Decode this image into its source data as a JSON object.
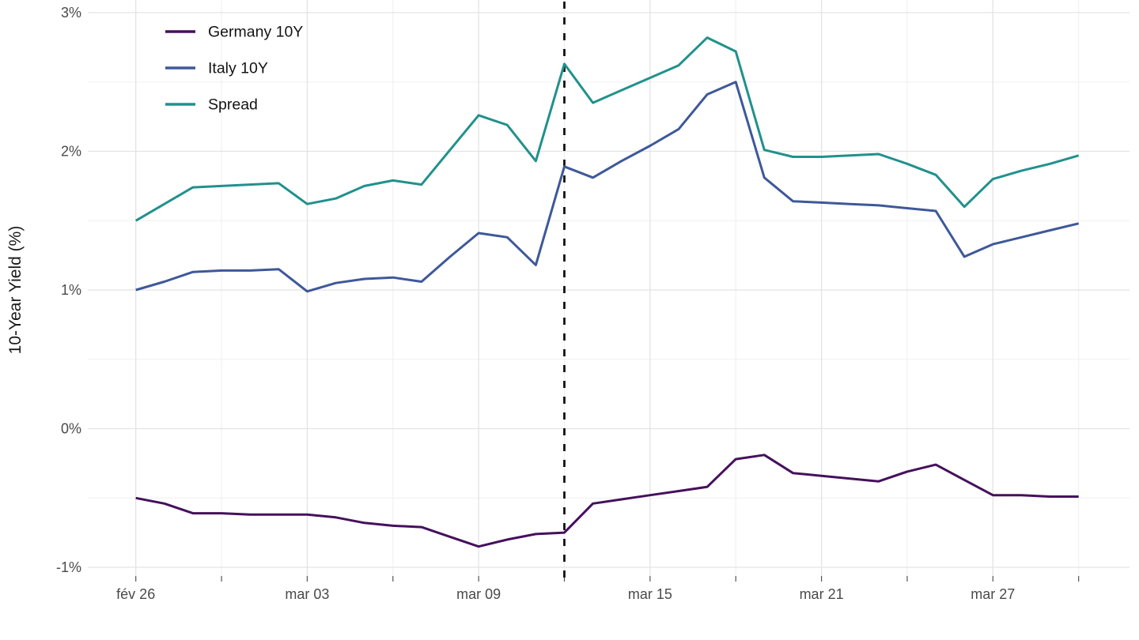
{
  "chart_data": {
    "type": "line",
    "title": "",
    "xlabel": "",
    "ylabel": "10-Year Yield (%)",
    "ylim": [
      -1,
      3
    ],
    "grid": true,
    "legend_position": "top-left-inside",
    "background_color": "#FFFFFF",
    "grid_major_color": "#E3E3E3",
    "grid_minor_color": "#F0F0F0",
    "tick_text_color": "#4A4A4A",
    "axis_title_color": "#1A1A1A",
    "legend_text_color": "#141414",
    "y_major_ticks": [
      3,
      2,
      1,
      0,
      -1
    ],
    "y_tick_labels": [
      "3%",
      "2%",
      "1%",
      "0%",
      "-1%"
    ],
    "y_minor_ticks": [
      2.5,
      1.5,
      0.5,
      -0.5
    ],
    "x": [
      "fév 26",
      "fév 27",
      "fév 28",
      "fév 29",
      "mar 01",
      "mar 02",
      "mar 03",
      "mar 04",
      "mar 05",
      "mar 06",
      "mar 07",
      "mar 08",
      "mar 09",
      "mar 10",
      "mar 11",
      "mar 12",
      "mar 13",
      "mar 14",
      "mar 15",
      "mar 16",
      "mar 17",
      "mar 18",
      "mar 19",
      "mar 20",
      "mar 21",
      "mar 22",
      "mar 23",
      "mar 24",
      "mar 25",
      "mar 26",
      "mar 27",
      "mar 28",
      "mar 29",
      "mar 30"
    ],
    "x_major_tick_indices": [
      0,
      6,
      12,
      18,
      24,
      30
    ],
    "x_major_tick_labels": [
      "fév 26",
      "mar 03",
      "mar 09",
      "mar 15",
      "mar 21",
      "mar 27"
    ],
    "x_minor_tick_indices": [
      3,
      9,
      15,
      21,
      27,
      33
    ],
    "event_vline": {
      "x_index": 15,
      "x_label": "mar 12",
      "style": "dashed",
      "color": "#111111"
    },
    "series": [
      {
        "name": "Germany 10Y",
        "color": "#45105C",
        "values": [
          -0.5,
          -0.54,
          -0.61,
          -0.61,
          -0.62,
          -0.62,
          -0.62,
          -0.64,
          -0.68,
          -0.7,
          -0.71,
          -0.78,
          -0.85,
          -0.8,
          -0.76,
          -0.75,
          -0.54,
          -0.51,
          -0.48,
          -0.45,
          -0.42,
          -0.22,
          -0.19,
          -0.32,
          -0.34,
          -0.36,
          -0.38,
          -0.31,
          -0.26,
          -0.37,
          -0.48,
          -0.48,
          -0.49,
          -0.49
        ]
      },
      {
        "name": "Italy 10Y",
        "color": "#3E5899",
        "values": [
          1.0,
          1.06,
          1.13,
          1.14,
          1.14,
          1.15,
          0.99,
          1.05,
          1.08,
          1.09,
          1.06,
          1.24,
          1.41,
          1.38,
          1.18,
          1.89,
          1.81,
          1.93,
          2.04,
          2.16,
          2.41,
          2.5,
          1.81,
          1.64,
          1.63,
          1.62,
          1.61,
          1.59,
          1.57,
          1.24,
          1.33,
          1.38,
          1.43,
          1.48
        ]
      },
      {
        "name": "Spread",
        "color": "#21918C",
        "values": [
          1.5,
          1.62,
          1.74,
          1.75,
          1.76,
          1.77,
          1.62,
          1.66,
          1.75,
          1.79,
          1.76,
          2.01,
          2.26,
          2.19,
          1.93,
          2.63,
          2.35,
          2.44,
          2.53,
          2.62,
          2.82,
          2.72,
          2.01,
          1.96,
          1.96,
          1.97,
          1.98,
          1.91,
          1.83,
          1.6,
          1.8,
          1.86,
          1.91,
          1.97
        ]
      }
    ]
  }
}
